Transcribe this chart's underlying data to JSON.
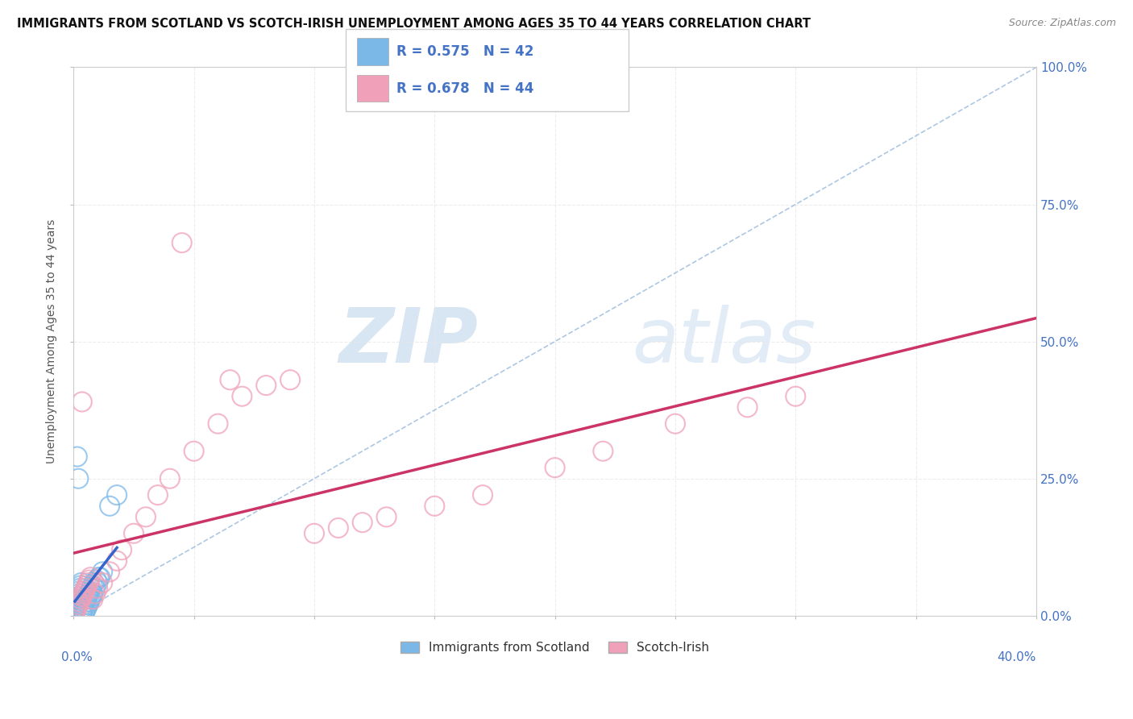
{
  "title": "IMMIGRANTS FROM SCOTLAND VS SCOTCH-IRISH UNEMPLOYMENT AMONG AGES 35 TO 44 YEARS CORRELATION CHART",
  "source": "Source: ZipAtlas.com",
  "ylabel_label": "Unemployment Among Ages 35 to 44 years",
  "xlim": [
    0.0,
    40.0
  ],
  "ylim": [
    0.0,
    100.0
  ],
  "legend_label1": "Immigrants from Scotland",
  "legend_label2": "Scotch-Irish",
  "r1": 0.575,
  "n1": 42,
  "r2": 0.678,
  "n2": 44,
  "color_scotland": "#7bb8e8",
  "color_scotch": "#f0a0b8",
  "color_scotland_line": "#3366cc",
  "color_scotch_line": "#cc3366",
  "color_trend_dashed": "#8ab0d8",
  "watermark_zip": "ZIP",
  "watermark_atlas": "atlas",
  "background_color": "#ffffff",
  "grid_color": "#e8e8e8",
  "tick_color": "#4472c4",
  "scotland_x": [
    0.05,
    0.08,
    0.1,
    0.12,
    0.15,
    0.18,
    0.2,
    0.22,
    0.25,
    0.28,
    0.3,
    0.32,
    0.35,
    0.38,
    0.4,
    0.45,
    0.5,
    0.55,
    0.6,
    0.65,
    0.7,
    0.75,
    0.8,
    0.9,
    1.0,
    1.1,
    1.2,
    0.42,
    0.48,
    0.52,
    0.58,
    0.62,
    0.68,
    0.72,
    0.78,
    0.85,
    0.95,
    1.05,
    1.5,
    1.8,
    0.15,
    0.2
  ],
  "scotland_y": [
    0.5,
    1.0,
    1.5,
    2.0,
    2.5,
    3.0,
    3.5,
    4.0,
    4.5,
    5.0,
    5.5,
    6.0,
    0.5,
    1.0,
    1.5,
    0.5,
    1.0,
    1.5,
    2.0,
    2.5,
    3.0,
    3.5,
    4.0,
    5.0,
    6.0,
    7.0,
    8.0,
    2.0,
    2.5,
    3.0,
    3.5,
    4.0,
    4.5,
    5.0,
    5.5,
    6.0,
    6.5,
    7.0,
    20.0,
    22.0,
    29.0,
    25.0
  ],
  "scotch_x": [
    0.05,
    0.1,
    0.15,
    0.2,
    0.25,
    0.3,
    0.35,
    0.4,
    0.45,
    0.5,
    0.55,
    0.6,
    0.65,
    0.7,
    0.8,
    0.9,
    1.0,
    1.2,
    1.5,
    1.8,
    2.0,
    2.5,
    3.0,
    3.5,
    4.0,
    5.0,
    6.0,
    7.0,
    8.0,
    9.0,
    10.0,
    11.0,
    12.0,
    13.0,
    15.0,
    17.0,
    20.0,
    22.0,
    25.0,
    28.0,
    30.0,
    0.35,
    4.5,
    6.5
  ],
  "scotch_y": [
    0.5,
    1.0,
    1.5,
    2.0,
    2.5,
    3.0,
    3.5,
    4.0,
    4.5,
    5.0,
    5.5,
    6.0,
    6.5,
    7.0,
    3.0,
    4.0,
    5.0,
    6.0,
    8.0,
    10.0,
    12.0,
    15.0,
    18.0,
    22.0,
    25.0,
    30.0,
    35.0,
    40.0,
    42.0,
    43.0,
    15.0,
    16.0,
    17.0,
    18.0,
    20.0,
    22.0,
    27.0,
    30.0,
    35.0,
    38.0,
    40.0,
    39.0,
    68.0,
    43.0
  ]
}
